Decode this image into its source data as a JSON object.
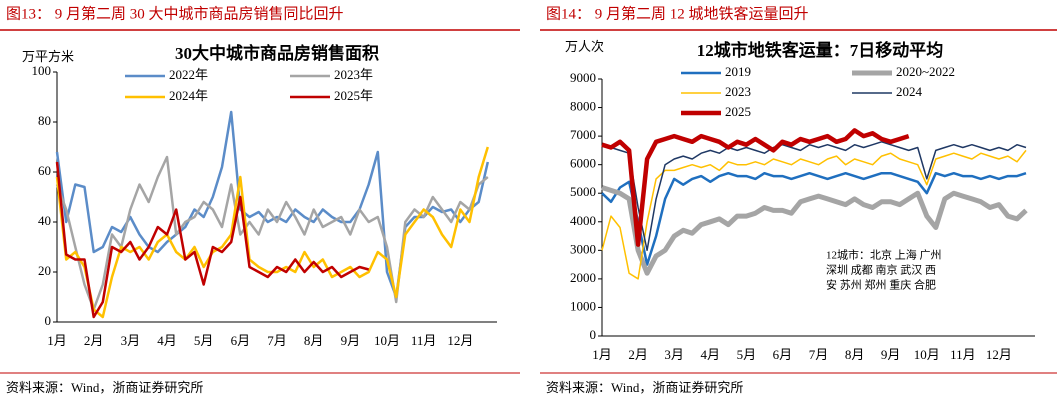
{
  "chart_data": [
    {
      "type": "line",
      "caption": "图13：  9 月第二周 30 大中城市商品房销售同比回升",
      "title": "30大中城市商品房销售面积",
      "y_label": "万平方米",
      "source": "资料来源：Wind，浙商证券研究所",
      "categories": [
        "1月",
        null,
        null,
        null,
        "2月",
        null,
        null,
        null,
        "3月",
        null,
        null,
        null,
        "4月",
        null,
        null,
        null,
        "5月",
        null,
        null,
        null,
        "6月",
        null,
        null,
        null,
        "7月",
        null,
        null,
        null,
        "8月",
        null,
        null,
        null,
        "9月",
        null,
        null,
        null,
        "10月",
        null,
        null,
        null,
        "11月",
        null,
        null,
        null,
        "12月",
        null,
        null,
        null
      ],
      "ylim": [
        0,
        100
      ],
      "yticks": [
        0,
        20,
        40,
        60,
        80,
        100
      ],
      "series": [
        {
          "name": "2022年",
          "color": "#5b8cc8",
          "width": 2.5,
          "values": [
            68,
            40,
            55,
            54,
            28,
            30,
            38,
            36,
            42,
            35,
            30,
            28,
            32,
            35,
            38,
            45,
            42,
            50,
            62,
            84,
            45,
            42,
            44,
            40,
            42,
            40,
            45,
            42,
            40,
            45,
            42,
            40,
            40,
            45,
            55,
            68,
            20,
            10,
            38,
            42,
            42,
            46,
            44,
            45,
            40,
            45,
            48,
            64
          ]
        },
        {
          "name": "2023年",
          "color": "#a5a5a5",
          "width": 2.5,
          "values": [
            55,
            45,
            30,
            15,
            5,
            15,
            35,
            30,
            45,
            55,
            48,
            58,
            66,
            35,
            40,
            42,
            48,
            45,
            38,
            55,
            35,
            40,
            35,
            45,
            40,
            48,
            42,
            35,
            45,
            38,
            40,
            42,
            35,
            45,
            40,
            42,
            30,
            8,
            40,
            45,
            42,
            50,
            45,
            40,
            48,
            45,
            55,
            58
          ]
        },
        {
          "name": "2024年",
          "color": "#ffc000",
          "width": 2.5,
          "values": [
            58,
            25,
            28,
            22,
            5,
            2,
            18,
            30,
            28,
            30,
            25,
            32,
            35,
            28,
            25,
            30,
            22,
            28,
            30,
            35,
            58,
            25,
            22,
            20,
            20,
            22,
            20,
            28,
            22,
            25,
            18,
            20,
            22,
            18,
            20,
            28,
            25,
            10,
            35,
            40,
            45,
            42,
            35,
            30,
            45,
            40,
            58,
            70
          ]
        },
        {
          "name": "2025年",
          "color": "#c00000",
          "width": 2.5,
          "values": [
            64,
            27,
            25,
            25,
            2,
            8,
            30,
            28,
            32,
            25,
            30,
            38,
            35,
            45,
            25,
            28,
            15,
            30,
            28,
            32,
            50,
            22,
            20,
            18,
            22,
            20,
            25,
            20,
            24,
            20,
            22,
            18,
            20,
            22,
            21,
            null,
            null,
            null,
            null,
            null,
            null,
            null,
            null,
            null,
            null,
            null,
            null,
            null
          ]
        }
      ]
    },
    {
      "type": "line",
      "caption": "图14：  9 月第二周 12 城地铁客运量回升",
      "title": "12城市地铁客运量：7日移动平均",
      "y_label": "万人次",
      "source": "资料来源：Wind，浙商证券研究所",
      "annotation": [
        "12城市：北京 上海 广州",
        "深圳 成都 南京 武汉 西",
        "安 苏州 郑州 重庆 合肥"
      ],
      "categories": [
        "1月",
        null,
        null,
        null,
        "2月",
        null,
        null,
        null,
        "3月",
        null,
        null,
        null,
        "4月",
        null,
        null,
        null,
        "5月",
        null,
        null,
        null,
        "6月",
        null,
        null,
        null,
        "7月",
        null,
        null,
        null,
        "8月",
        null,
        null,
        null,
        "9月",
        null,
        null,
        null,
        "10月",
        null,
        null,
        null,
        "11月",
        null,
        null,
        null,
        "12月",
        null,
        null,
        null
      ],
      "ylim": [
        0,
        9000
      ],
      "yticks": [
        0,
        1000,
        2000,
        3000,
        4000,
        5000,
        6000,
        7000,
        8000,
        9000
      ],
      "series": [
        {
          "name": "2019",
          "color": "#1f6fbf",
          "width": 2.5,
          "values": [
            5000,
            4700,
            5200,
            5400,
            4000,
            2500,
            3500,
            4800,
            5500,
            5300,
            5500,
            5600,
            5400,
            5600,
            5700,
            5600,
            5600,
            5500,
            5700,
            5600,
            5600,
            5500,
            5600,
            5700,
            5600,
            5500,
            5600,
            5700,
            5600,
            5500,
            5600,
            5700,
            5700,
            5600,
            5500,
            5400,
            5000,
            5700,
            5600,
            5700,
            5600,
            5600,
            5500,
            5600,
            5500,
            5600,
            5600,
            5700
          ]
        },
        {
          "name": "2020~2022",
          "color": "#a5a5a5",
          "width": 5,
          "values": [
            5200,
            5100,
            5000,
            4800,
            3000,
            2200,
            2800,
            3000,
            3500,
            3700,
            3600,
            3900,
            4000,
            4100,
            3900,
            4200,
            4200,
            4300,
            4500,
            4400,
            4400,
            4300,
            4700,
            4800,
            4900,
            4800,
            4700,
            4600,
            4800,
            4600,
            4500,
            4700,
            4700,
            4600,
            4800,
            5000,
            4200,
            3800,
            4800,
            5000,
            4900,
            4800,
            4700,
            4500,
            4600,
            4200,
            4100,
            4400
          ]
        },
        {
          "name": "2023",
          "color": "#ffc000",
          "width": 1.5,
          "values": [
            3000,
            4200,
            3800,
            2200,
            2000,
            4000,
            5500,
            5800,
            5800,
            5900,
            6000,
            5900,
            6000,
            5800,
            6100,
            6000,
            6000,
            6100,
            6000,
            6200,
            6100,
            6000,
            6200,
            6100,
            6000,
            6200,
            6300,
            6000,
            6200,
            6100,
            6000,
            6300,
            6400,
            6200,
            6100,
            6000,
            5300,
            6200,
            6300,
            6400,
            6300,
            6200,
            6400,
            6300,
            6200,
            6300,
            6100,
            6500
          ]
        },
        {
          "name": "2024",
          "color": "#1f3864",
          "width": 1.5,
          "values": [
            6700,
            6600,
            6500,
            6400,
            4500,
            3000,
            4800,
            6000,
            6200,
            6300,
            6200,
            6400,
            6500,
            6400,
            6600,
            6500,
            6600,
            6500,
            6400,
            6600,
            6700,
            6600,
            6500,
            6700,
            6600,
            6700,
            6600,
            6500,
            6700,
            6600,
            6700,
            6800,
            6700,
            6600,
            6500,
            6600,
            5500,
            6500,
            6600,
            6700,
            6600,
            6700,
            6600,
            6500,
            6600,
            6500,
            6700,
            6600
          ]
        },
        {
          "name": "2025",
          "color": "#c00000",
          "width": 4.5,
          "values": [
            6700,
            6600,
            6800,
            6500,
            3200,
            6200,
            6800,
            6900,
            7000,
            6900,
            6800,
            7000,
            6900,
            6800,
            6600,
            6800,
            6700,
            6900,
            6700,
            6500,
            6800,
            6700,
            6900,
            6800,
            6900,
            7000,
            6800,
            6900,
            7200,
            7000,
            7100,
            6900,
            6800,
            6900,
            7000,
            null,
            null,
            null,
            null,
            null,
            null,
            null,
            null,
            null,
            null,
            null,
            null,
            null
          ]
        }
      ]
    }
  ]
}
